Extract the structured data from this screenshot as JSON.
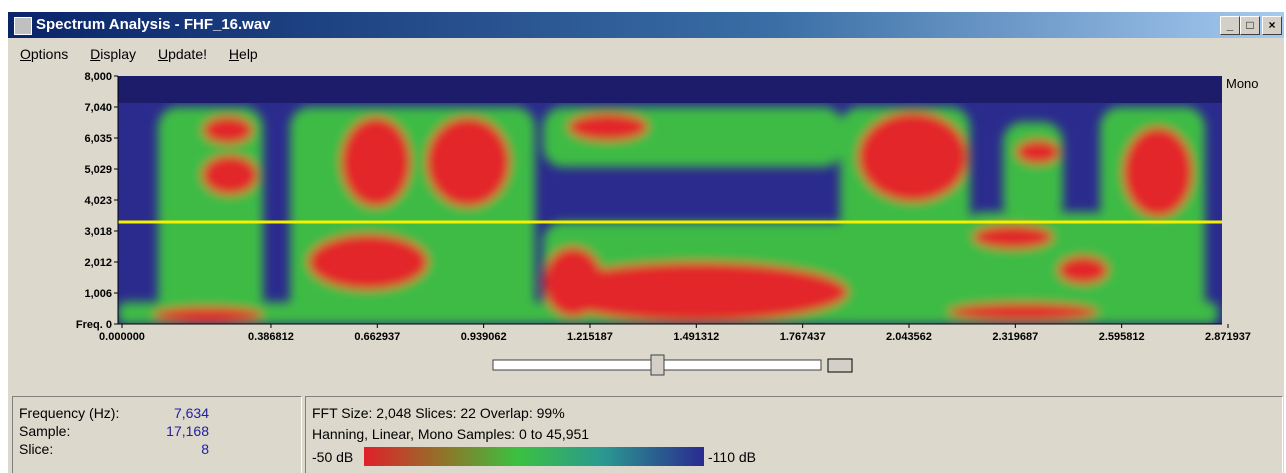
{
  "window": {
    "title": "Spectrum Analysis - FHF_16.wav",
    "channel": "Mono"
  },
  "menu": [
    "Options",
    "Display",
    "Update!",
    "Help"
  ],
  "plot": {
    "yticks": [
      "8,000",
      "7,040",
      "6,035",
      "5,029",
      "4,023",
      "3,018",
      "2,012",
      "1,006",
      "Freq. 0"
    ],
    "xticks": [
      "0.000000",
      "0.386812",
      "0.662937",
      "0.939062",
      "1.215187",
      "1.491312",
      "1.767437",
      "2.043562",
      "2.319687",
      "2.595812",
      "2.871937"
    ]
  },
  "status": {
    "rows": [
      [
        "Frequency (Hz):",
        "7,634"
      ],
      [
        "Sample:",
        "17,168"
      ],
      [
        "Slice:",
        "8"
      ]
    ],
    "fft_line": "FFT Size: 2,048  Slices: 22  Overlap: 99%",
    "window_line": "Hanning, Linear, Mono  Samples: 0 to 45,951",
    "scale_high": "-50 dB",
    "scale_low": "-110 dB"
  }
}
